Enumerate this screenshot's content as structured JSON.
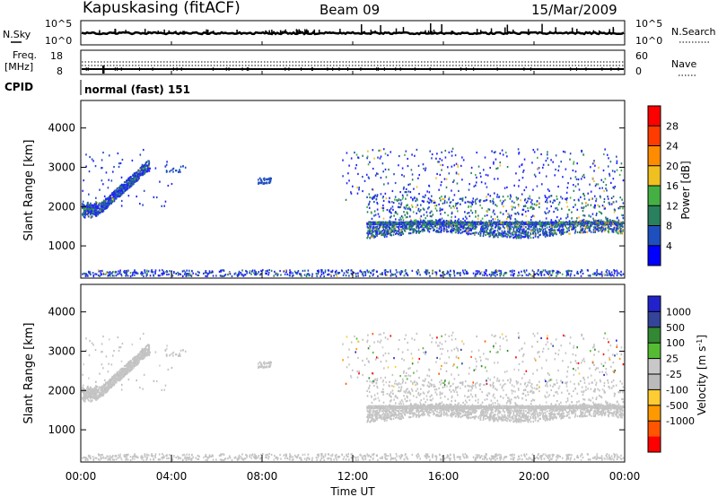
{
  "header": {
    "station": "Kapuskasing (fitACF)",
    "beam": "Beam 09",
    "date": "15/Mar/2009"
  },
  "colors": {
    "power_scale": [
      "#0000ff",
      "#1f4fbf",
      "#2a7f5f",
      "#44b044",
      "#f0c020",
      "#ff8c00",
      "#ff3c00",
      "#ff0000"
    ],
    "velocity_scale": [
      "#ff0000",
      "#ff5500",
      "#ff9900",
      "#ffcc33",
      "#bbbbbb",
      "#c8c8c8",
      "#55bb33",
      "#338833",
      "#334499",
      "#2222cc"
    ]
  },
  "chart_data": [
    {
      "type": "line",
      "panel": "noise-sky-search",
      "left_label": "N.Sky",
      "right_label": "N.Search",
      "left_ticks": [
        "10^5",
        "10^0"
      ],
      "right_ticks": [
        "10^5",
        "10^0"
      ],
      "log_scale": true
    },
    {
      "type": "line",
      "panel": "frequency-nave",
      "left_label": "Freq.",
      "left_unit": "[MHz]",
      "left_ticks": [
        "18",
        "8"
      ],
      "right_label": "Nave",
      "right_ticks": [
        "60",
        "0"
      ]
    },
    {
      "type": "table",
      "panel": "cpid",
      "label": "CPID",
      "mode_text": "normal (fast) 151"
    },
    {
      "type": "heatmap",
      "panel": "power",
      "ylabel": "Slant Range [km]",
      "yticks": [
        1000,
        2000,
        3000,
        4000
      ],
      "ylim": [
        180,
        4700
      ],
      "xlim": [
        0,
        24
      ],
      "colorbar_label": "Power [dB]",
      "colorbar_ticks": [
        "28",
        "24",
        "20",
        "16",
        "12",
        "8",
        "4"
      ]
    },
    {
      "type": "heatmap",
      "panel": "velocity",
      "ylabel": "Slant Range [km]",
      "yticks": [
        1000,
        2000,
        3000,
        4000
      ],
      "ylim": [
        180,
        4700
      ],
      "xlim": [
        0,
        24
      ],
      "xlabel": "Time UT",
      "xticks": [
        "00:00",
        "04:00",
        "08:00",
        "12:00",
        "16:00",
        "20:00",
        "00:00"
      ],
      "colorbar_label": "Velocity [m s",
      "colorbar_unit_sup": "-1",
      "colorbar_unit_close": "]",
      "colorbar_ticks": [
        "1000",
        "500",
        "100",
        "25",
        "-25",
        "-100",
        "-500",
        "-1000"
      ]
    }
  ]
}
